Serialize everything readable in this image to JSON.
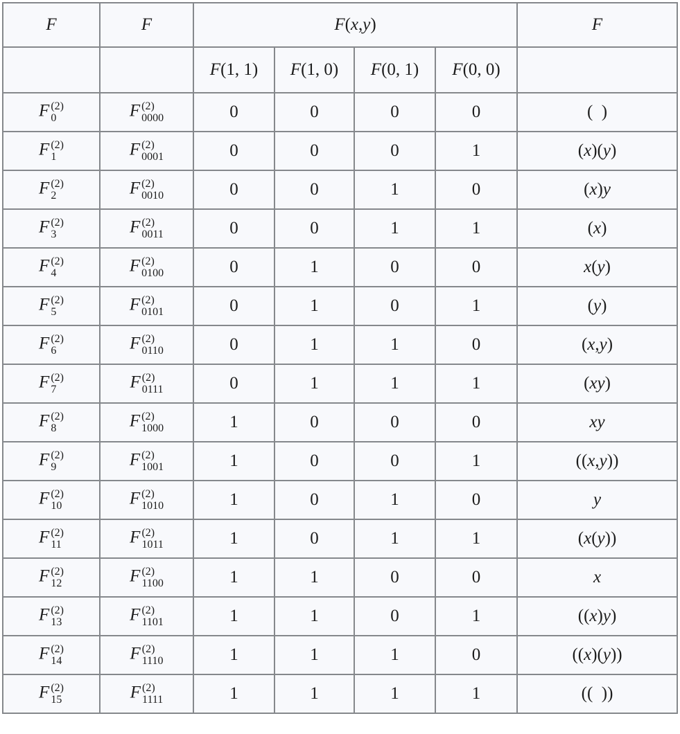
{
  "table": {
    "colors": {
      "cell_background": "#f8f9fc",
      "inner_border": "#85888c",
      "outer_border": "#5f6266",
      "page_background": "#ffffff",
      "text": "#1c1c1c"
    },
    "header": {
      "f_index": "F",
      "f_code": "F",
      "f_span": {
        "letter": "F",
        "args": "(x,y)"
      },
      "f_formula": "F",
      "sub_headers": [
        {
          "letter": "F",
          "args": "(1, 1)"
        },
        {
          "letter": "F",
          "args": "(1, 0)"
        },
        {
          "letter": "F",
          "args": "(0, 1)"
        },
        {
          "letter": "F",
          "args": "(0, 0)"
        }
      ]
    },
    "row_letter": "F",
    "superscript": "(2)",
    "rows": [
      {
        "index_sub": "0",
        "code_sub": "0000",
        "values": [
          "0",
          "0",
          "0",
          "0"
        ],
        "formula": "(  )"
      },
      {
        "index_sub": "1",
        "code_sub": "0001",
        "values": [
          "0",
          "0",
          "0",
          "1"
        ],
        "formula": "(x)(y)"
      },
      {
        "index_sub": "2",
        "code_sub": "0010",
        "values": [
          "0",
          "0",
          "1",
          "0"
        ],
        "formula": "(x)y"
      },
      {
        "index_sub": "3",
        "code_sub": "0011",
        "values": [
          "0",
          "0",
          "1",
          "1"
        ],
        "formula": "(x)"
      },
      {
        "index_sub": "4",
        "code_sub": "0100",
        "values": [
          "0",
          "1",
          "0",
          "0"
        ],
        "formula": "x(y)"
      },
      {
        "index_sub": "5",
        "code_sub": "0101",
        "values": [
          "0",
          "1",
          "0",
          "1"
        ],
        "formula": "(y)"
      },
      {
        "index_sub": "6",
        "code_sub": "0110",
        "values": [
          "0",
          "1",
          "1",
          "0"
        ],
        "formula": "(x,y)"
      },
      {
        "index_sub": "7",
        "code_sub": "0111",
        "values": [
          "0",
          "1",
          "1",
          "1"
        ],
        "formula": "(xy)"
      },
      {
        "index_sub": "8",
        "code_sub": "1000",
        "values": [
          "1",
          "0",
          "0",
          "0"
        ],
        "formula": "xy"
      },
      {
        "index_sub": "9",
        "code_sub": "1001",
        "values": [
          "1",
          "0",
          "0",
          "1"
        ],
        "formula": "((x,y))"
      },
      {
        "index_sub": "10",
        "code_sub": "1010",
        "values": [
          "1",
          "0",
          "1",
          "0"
        ],
        "formula": "y"
      },
      {
        "index_sub": "11",
        "code_sub": "1011",
        "values": [
          "1",
          "0",
          "1",
          "1"
        ],
        "formula": "(x(y))"
      },
      {
        "index_sub": "12",
        "code_sub": "1100",
        "values": [
          "1",
          "1",
          "0",
          "0"
        ],
        "formula": "x"
      },
      {
        "index_sub": "13",
        "code_sub": "1101",
        "values": [
          "1",
          "1",
          "0",
          "1"
        ],
        "formula": "((x)y)"
      },
      {
        "index_sub": "14",
        "code_sub": "1110",
        "values": [
          "1",
          "1",
          "1",
          "0"
        ],
        "formula": "((x)(y))"
      },
      {
        "index_sub": "15",
        "code_sub": "1111",
        "values": [
          "1",
          "1",
          "1",
          "1"
        ],
        "formula": "((  ))"
      }
    ]
  }
}
